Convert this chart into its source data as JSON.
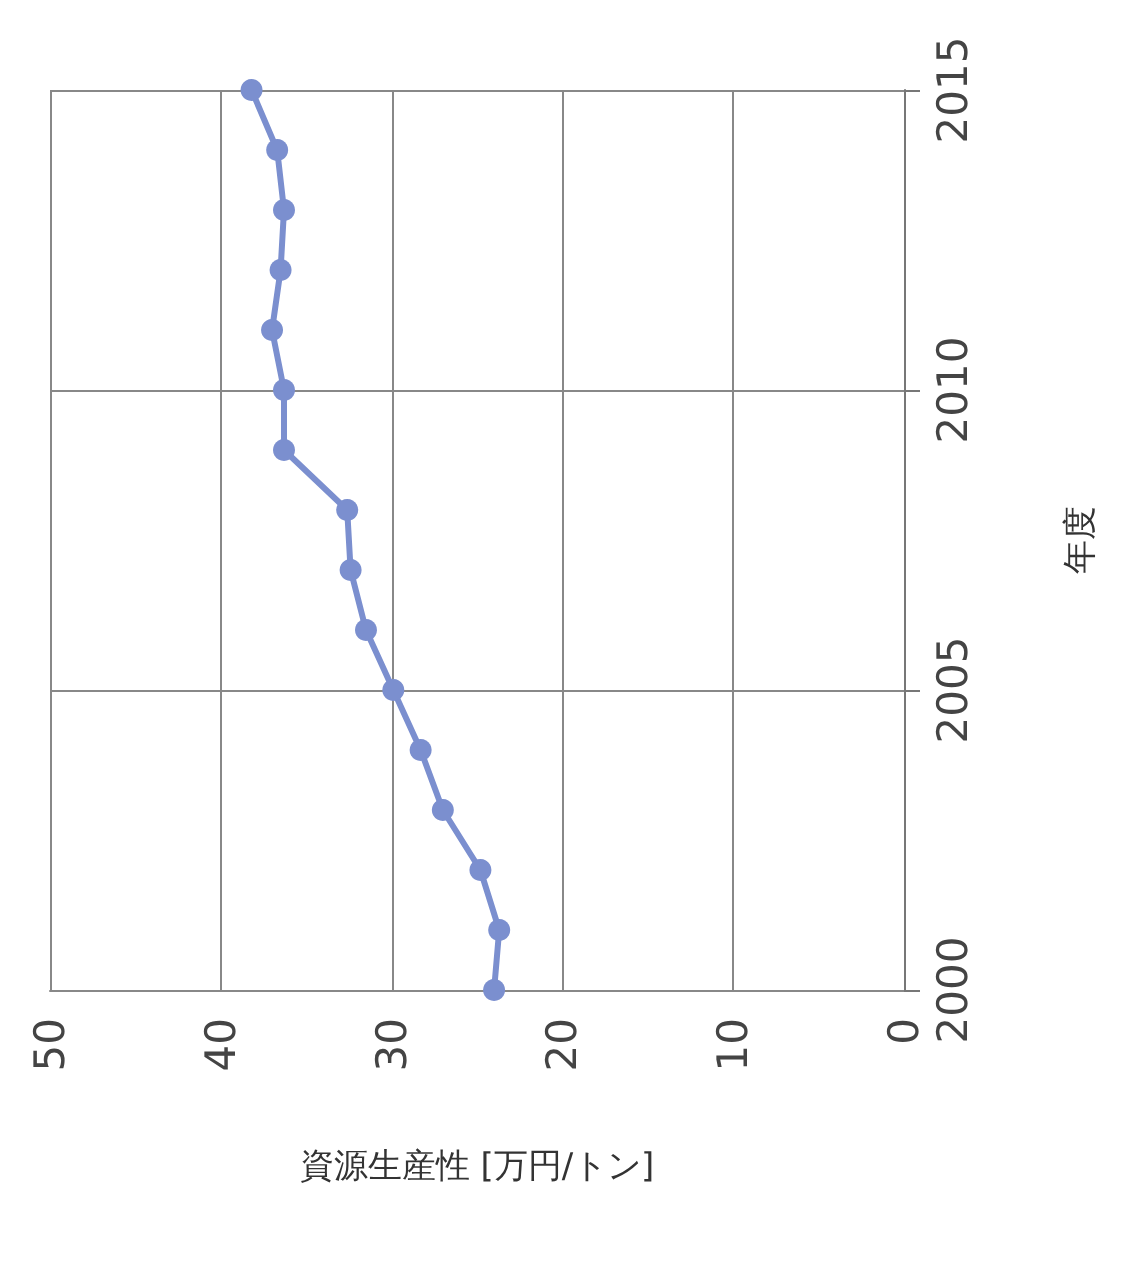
{
  "chart_data": {
    "type": "line",
    "xlabel": "資源生産性 [万円/トン]",
    "ylabel": "年度",
    "series": [
      {
        "color": "#7b8fcf",
        "x": [
          24.0,
          23.7,
          24.8,
          27.0,
          28.3,
          29.9,
          31.5,
          32.4,
          32.6,
          36.3,
          36.3,
          37.0,
          36.5,
          36.3,
          36.7,
          38.2
        ],
        "values": [
          2000,
          2001,
          2002,
          2003,
          2004,
          2005,
          2006,
          2007,
          2008,
          2009,
          2010,
          2011,
          2012,
          2013,
          2014,
          2015
        ]
      }
    ],
    "xlim": [
      50,
      0
    ],
    "xticks": [
      0,
      10,
      20,
      30,
      40,
      50
    ],
    "ylim": [
      2000,
      2015
    ],
    "yticks": [
      2000,
      2005,
      2010,
      2015
    ],
    "grid": true,
    "marker": "circle",
    "line_style": "solid"
  }
}
